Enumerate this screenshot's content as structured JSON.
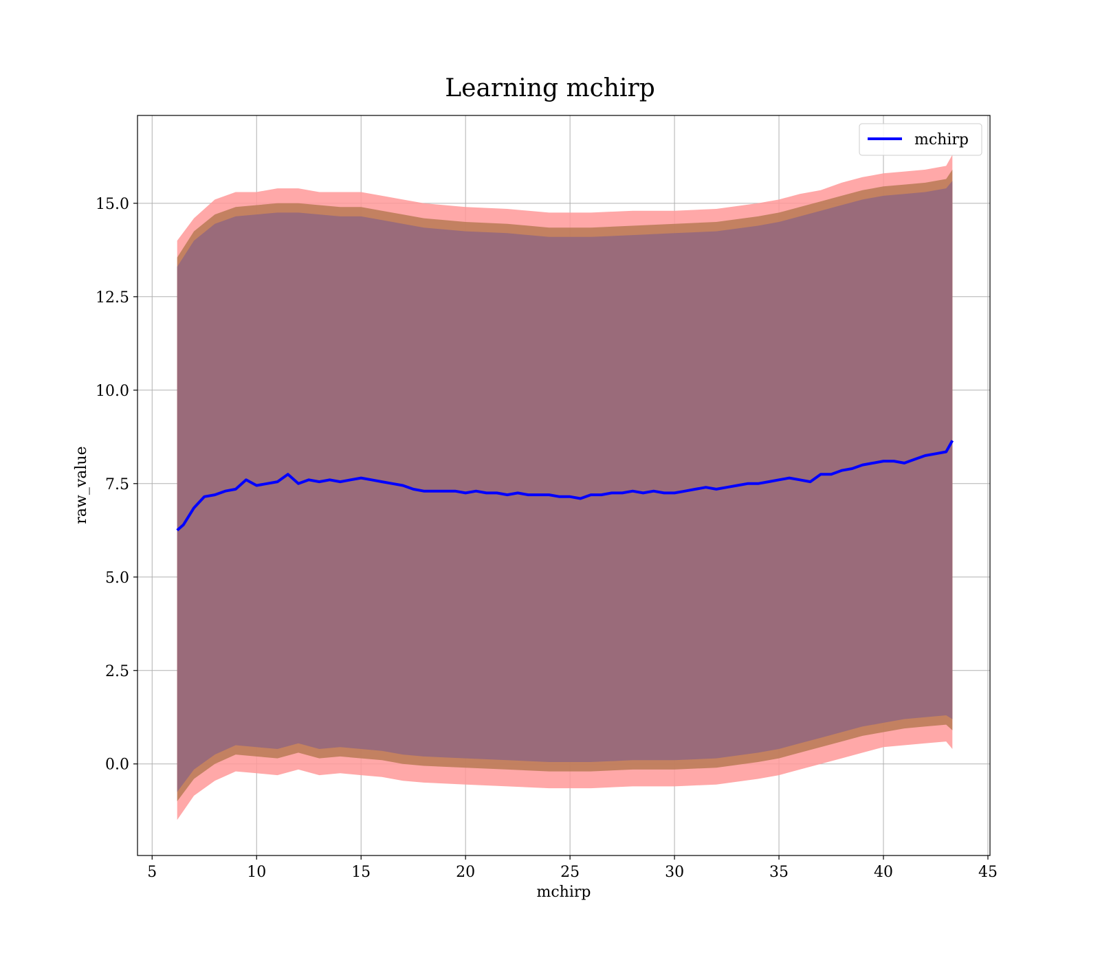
{
  "chart_data": {
    "type": "line",
    "title": "Learning mchirp",
    "xlabel": "mchirp",
    "ylabel": "raw_value",
    "xlim": [
      4.3,
      45.1
    ],
    "ylim": [
      -2.45,
      17.35
    ],
    "xticks": [
      5,
      10,
      15,
      20,
      25,
      30,
      35,
      40,
      45
    ],
    "xtick_labels": [
      "5",
      "10",
      "15",
      "20",
      "25",
      "30",
      "35",
      "40",
      "45"
    ],
    "yticks": [
      0.0,
      2.5,
      5.0,
      7.5,
      10.0,
      12.5,
      15.0
    ],
    "ytick_labels": [
      "0.0",
      "2.5",
      "5.0",
      "7.5",
      "10.0",
      "12.5",
      "15.0"
    ],
    "grid": true,
    "legend": {
      "position": "top-right",
      "entries": [
        "mchirp"
      ]
    },
    "series": [
      {
        "name": "mchirp",
        "color": "#0000ff",
        "x": [
          6.2,
          6.5,
          7.0,
          7.5,
          8.0,
          8.5,
          9.0,
          9.5,
          10.0,
          10.5,
          11.0,
          11.5,
          12.0,
          12.5,
          13.0,
          13.5,
          14.0,
          14.5,
          15.0,
          15.5,
          16.0,
          16.5,
          17.0,
          17.5,
          18.0,
          18.5,
          19.0,
          19.5,
          20.0,
          20.5,
          21.0,
          21.5,
          22.0,
          22.5,
          23.0,
          23.5,
          24.0,
          24.5,
          25.0,
          25.5,
          26.0,
          26.5,
          27.0,
          27.5,
          28.0,
          28.5,
          29.0,
          29.5,
          30.0,
          30.5,
          31.0,
          31.5,
          32.0,
          32.5,
          33.0,
          33.5,
          34.0,
          34.5,
          35.0,
          35.5,
          36.0,
          36.5,
          37.0,
          37.5,
          38.0,
          38.5,
          39.0,
          39.5,
          40.0,
          40.5,
          41.0,
          41.5,
          42.0,
          42.5,
          43.0,
          43.3
        ],
        "y": [
          6.25,
          6.4,
          6.85,
          7.15,
          7.2,
          7.3,
          7.35,
          7.6,
          7.45,
          7.5,
          7.55,
          7.75,
          7.5,
          7.6,
          7.55,
          7.6,
          7.55,
          7.6,
          7.65,
          7.6,
          7.55,
          7.5,
          7.45,
          7.35,
          7.3,
          7.3,
          7.3,
          7.3,
          7.25,
          7.3,
          7.25,
          7.25,
          7.2,
          7.25,
          7.2,
          7.2,
          7.2,
          7.15,
          7.15,
          7.1,
          7.2,
          7.2,
          7.25,
          7.25,
          7.3,
          7.25,
          7.3,
          7.25,
          7.25,
          7.3,
          7.35,
          7.4,
          7.35,
          7.4,
          7.45,
          7.5,
          7.5,
          7.55,
          7.6,
          7.65,
          7.6,
          7.55,
          7.75,
          7.75,
          7.85,
          7.9,
          8.0,
          8.05,
          8.1,
          8.1,
          8.05,
          8.15,
          8.25,
          8.3,
          8.35,
          8.65
        ]
      }
    ],
    "bands": [
      {
        "color": "#ff9999",
        "x": [
          6.2,
          7.0,
          8.0,
          9.0,
          10.0,
          11.0,
          12.0,
          13.0,
          14.0,
          15.0,
          16.0,
          17.0,
          18.0,
          20.0,
          22.0,
          24.0,
          26.0,
          28.0,
          30.0,
          32.0,
          34.0,
          35.0,
          36.0,
          37.0,
          38.0,
          39.0,
          40.0,
          41.0,
          42.0,
          43.0,
          43.3
        ],
        "upper": [
          14.0,
          14.6,
          15.1,
          15.3,
          15.3,
          15.4,
          15.4,
          15.3,
          15.3,
          15.3,
          15.2,
          15.1,
          15.0,
          14.9,
          14.85,
          14.75,
          14.75,
          14.8,
          14.8,
          14.85,
          15.0,
          15.1,
          15.25,
          15.35,
          15.55,
          15.7,
          15.8,
          15.85,
          15.9,
          16.0,
          16.3
        ],
        "lower": [
          -1.5,
          -0.85,
          -0.45,
          -0.2,
          -0.25,
          -0.3,
          -0.15,
          -0.3,
          -0.25,
          -0.3,
          -0.35,
          -0.45,
          -0.5,
          -0.55,
          -0.6,
          -0.65,
          -0.65,
          -0.6,
          -0.6,
          -0.55,
          -0.4,
          -0.3,
          -0.15,
          0.0,
          0.15,
          0.3,
          0.45,
          0.5,
          0.55,
          0.6,
          0.4
        ]
      },
      {
        "color": "#b87a55",
        "x": [
          6.2,
          7.0,
          8.0,
          9.0,
          10.0,
          11.0,
          12.0,
          13.0,
          14.0,
          15.0,
          16.0,
          17.0,
          18.0,
          20.0,
          22.0,
          24.0,
          26.0,
          28.0,
          30.0,
          32.0,
          34.0,
          35.0,
          36.0,
          37.0,
          38.0,
          39.0,
          40.0,
          41.0,
          42.0,
          43.0,
          43.3
        ],
        "upper": [
          13.55,
          14.25,
          14.7,
          14.9,
          14.95,
          15.0,
          15.0,
          14.95,
          14.9,
          14.9,
          14.8,
          14.7,
          14.6,
          14.5,
          14.45,
          14.35,
          14.35,
          14.4,
          14.45,
          14.5,
          14.65,
          14.75,
          14.9,
          15.05,
          15.2,
          15.35,
          15.45,
          15.5,
          15.55,
          15.65,
          15.9
        ],
        "lower": [
          -1.0,
          -0.4,
          0.0,
          0.25,
          0.2,
          0.15,
          0.3,
          0.15,
          0.2,
          0.15,
          0.1,
          0.0,
          -0.05,
          -0.1,
          -0.15,
          -0.2,
          -0.2,
          -0.15,
          -0.15,
          -0.1,
          0.05,
          0.15,
          0.3,
          0.45,
          0.6,
          0.75,
          0.85,
          0.95,
          1.0,
          1.05,
          0.9
        ]
      },
      {
        "color": "#9a6b7a",
        "x": [
          6.2,
          7.0,
          8.0,
          9.0,
          10.0,
          11.0,
          12.0,
          13.0,
          14.0,
          15.0,
          16.0,
          17.0,
          18.0,
          20.0,
          22.0,
          24.0,
          26.0,
          28.0,
          30.0,
          32.0,
          34.0,
          35.0,
          36.0,
          37.0,
          38.0,
          39.0,
          40.0,
          41.0,
          42.0,
          43.0,
          43.3
        ],
        "upper": [
          13.3,
          14.0,
          14.45,
          14.65,
          14.7,
          14.75,
          14.75,
          14.7,
          14.65,
          14.65,
          14.55,
          14.45,
          14.35,
          14.25,
          14.2,
          14.1,
          14.1,
          14.15,
          14.2,
          14.25,
          14.4,
          14.5,
          14.65,
          14.8,
          14.95,
          15.1,
          15.2,
          15.25,
          15.3,
          15.4,
          15.6
        ],
        "lower": [
          -0.75,
          -0.15,
          0.25,
          0.5,
          0.45,
          0.4,
          0.55,
          0.4,
          0.45,
          0.4,
          0.35,
          0.25,
          0.2,
          0.15,
          0.1,
          0.05,
          0.05,
          0.1,
          0.1,
          0.15,
          0.3,
          0.4,
          0.55,
          0.7,
          0.85,
          1.0,
          1.1,
          1.2,
          1.25,
          1.3,
          1.2
        ]
      }
    ]
  }
}
